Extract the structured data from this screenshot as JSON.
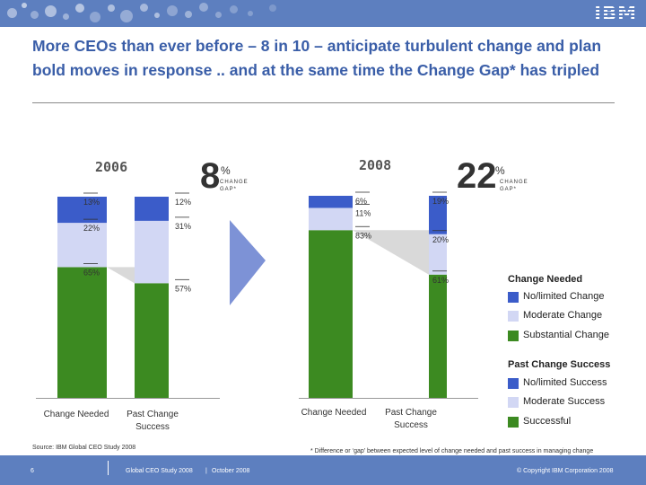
{
  "header": {
    "logo": "IBM"
  },
  "title": "More CEOs than ever before – 8 in 10 – anticipate turbulent change and plan bold moves in response .. and at the same time the Change Gap* has tripled",
  "colors": {
    "no_limited": "#3b5cc9",
    "moderate": "#d2d7f4",
    "substantial": "#3c8a21",
    "topbar": "#5d7fbf",
    "title": "#3a5ea8"
  },
  "chart_data": [
    {
      "type": "bar",
      "stacked": true,
      "year_label": "2006",
      "gap_value": "8",
      "gap_unit": "%",
      "gap_label": "CHANGE GAP*",
      "categories": [
        "Change Needed",
        "Past Change Success"
      ],
      "series": [
        {
          "name": "Substantial",
          "values": [
            65,
            57
          ]
        },
        {
          "name": "Moderate",
          "values": [
            22,
            31
          ]
        },
        {
          "name": "No/limited",
          "values": [
            13,
            12
          ]
        }
      ],
      "value_labels": [
        [
          "13%",
          "22%",
          "65%"
        ],
        [
          "12%",
          "31%",
          "57%"
        ]
      ],
      "ylim": [
        0,
        100
      ]
    },
    {
      "type": "bar",
      "stacked": true,
      "year_label": "2008",
      "gap_value": "22",
      "gap_unit": "%",
      "gap_label": "CHANGE GAP*",
      "categories": [
        "Change Needed",
        "Past Change Success"
      ],
      "series": [
        {
          "name": "Substantial",
          "values": [
            83,
            61
          ]
        },
        {
          "name": "Moderate",
          "values": [
            11,
            20
          ]
        },
        {
          "name": "No/limited",
          "values": [
            6,
            19
          ]
        }
      ],
      "value_labels": [
        [
          "6%",
          "11%",
          "83%"
        ],
        [
          "19%",
          "20%",
          "61%"
        ]
      ],
      "ylim": [
        0,
        100
      ]
    }
  ],
  "legend": {
    "change_needed_title": "Change Needed",
    "change_needed_items": [
      "No/limited Change",
      "Moderate Change",
      "Substantial Change"
    ],
    "past_success_title": "Past Change Success",
    "past_success_items": [
      "No/limited Success",
      "Moderate Success",
      "Successful"
    ]
  },
  "source": "Source: IBM Global CEO Study 2008",
  "footnote": "* Difference or ‘gap’ between expected level of change needed and past success in managing change",
  "footer": {
    "page": "6",
    "study": "Global CEO Study 2008",
    "separator": "|",
    "date": "October 2008",
    "copyright": "© Copyright IBM Corporation 2008"
  }
}
